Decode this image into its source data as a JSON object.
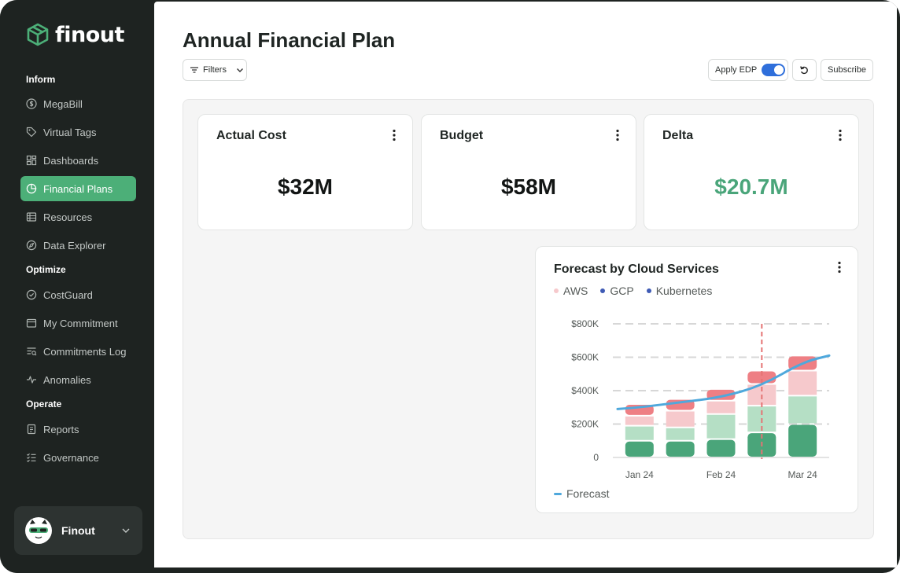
{
  "app": {
    "brand": "finout"
  },
  "sidebar": {
    "sections": [
      {
        "label": "Inform"
      },
      {
        "label": "Optimize"
      },
      {
        "label": "Operate"
      }
    ],
    "items": [
      {
        "label": "MegaBill",
        "icon": "dollar-circle-icon"
      },
      {
        "label": "Virtual Tags",
        "icon": "tag-icon"
      },
      {
        "label": "Dashboards",
        "icon": "grid-icon"
      },
      {
        "label": "Financial Plans",
        "icon": "pie-chart-icon",
        "active": true
      },
      {
        "label": "Resources",
        "icon": "list-icon"
      },
      {
        "label": "Data Explorer",
        "icon": "compass-icon"
      },
      {
        "label": "CostGuard",
        "icon": "shield-check-icon"
      },
      {
        "label": "My Commitment",
        "icon": "calendar-icon"
      },
      {
        "label": "Commitments Log",
        "icon": "log-icon"
      },
      {
        "label": "Anomalies",
        "icon": "pulse-icon"
      },
      {
        "label": "Reports",
        "icon": "report-icon"
      },
      {
        "label": "Governance",
        "icon": "checklist-icon"
      }
    ],
    "user": {
      "name": "Finout"
    }
  },
  "header": {
    "title": "Annual Financial Plan",
    "filters_label": "Filters",
    "apply_edp_label": "Apply EDP",
    "apply_edp_on": true,
    "subscribe_label": "Subscribe"
  },
  "kpis": [
    {
      "title": "Actual Cost",
      "value": "$32M"
    },
    {
      "title": "Budget",
      "value": "$58M"
    },
    {
      "title": "Delta",
      "value": "$20.7M",
      "color": "#4aa57a"
    }
  ],
  "forecast_card": {
    "title": "Forecast by Cloud Services",
    "legend": [
      {
        "label": "AWS",
        "color": "#f6c9cc"
      },
      {
        "label": "GCP",
        "color": "#3f5bb5"
      },
      {
        "label": "Kubernetes",
        "color": "#3f5bb5"
      }
    ],
    "forecast_label": "Forecast"
  },
  "chart_data": {
    "type": "bar",
    "stacked": true,
    "y_tick_labels": [
      "0",
      "$200K",
      "$400K",
      "$600K",
      "$800K"
    ],
    "x_tick_labels": [
      "Jan 24",
      "Feb 24",
      "Mar 24"
    ],
    "ylim": [
      0,
      800000
    ],
    "grid": true,
    "bars": [
      {
        "segments": [
          100000,
          90000,
          60000,
          70000
        ]
      },
      {
        "segments": [
          100000,
          80000,
          100000,
          70000
        ]
      },
      {
        "segments": [
          110000,
          150000,
          80000,
          70000
        ]
      },
      {
        "segments": [
          150000,
          160000,
          130000,
          80000
        ]
      },
      {
        "segments": [
          200000,
          170000,
          150000,
          90000
        ]
      }
    ],
    "segment_colors": [
      "#4aa57a",
      "#b5dfc5",
      "#f6c9cc",
      "#ee7f84"
    ],
    "forecast": [
      300000,
      330000,
      360000,
      430000,
      570000
    ],
    "forecast_color": "#4fa8dc",
    "marker_line_color": "#e57373"
  }
}
